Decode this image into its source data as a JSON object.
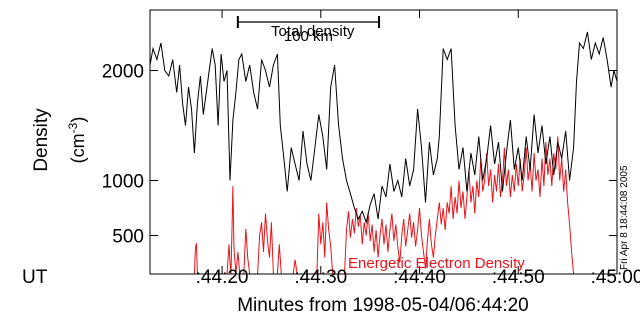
{
  "chart_data": {
    "type": "line",
    "ylabel": "Density",
    "ylabel_unit": "(cm-3)",
    "ylabel_unit_base": "(cm",
    "ylabel_unit_exp": "-3",
    "ylabel_unit_close": ")",
    "xlabel": "Minutes from 1998-05-04/06:44:20",
    "x_row_label": "UT",
    "xlim_seconds": [
      -7.3,
      40
    ],
    "ylim": [
      150,
      2550
    ],
    "x_ticks": [
      {
        "t": 0,
        "label": ":44:20"
      },
      {
        "t": 10,
        "label": ":44:30"
      },
      {
        "t": 20,
        "label": ":44:40"
      },
      {
        "t": 30,
        "label": ":44:50"
      },
      {
        "t": 40,
        "label": ":45:00"
      }
    ],
    "y_ticks": [
      500,
      1000,
      2000
    ],
    "y_tick_labels": [
      "500",
      "1000",
      "2000"
    ],
    "annotations": {
      "total_label": "Total density",
      "energetic_label": "Energetic Electron Density",
      "scale_bar_label": "100 km",
      "scale_bar_seconds": [
        1.6,
        15.9
      ],
      "timestamp": "Fri Apr  8 18:44:08 2005"
    },
    "series": [
      {
        "name": "Total density",
        "color": "#000000",
        "points": [
          [
            -7.3,
            2050
          ],
          [
            -7.0,
            2200
          ],
          [
            -6.6,
            2100
          ],
          [
            -6.2,
            2250
          ],
          [
            -5.8,
            2000
          ],
          [
            -5.4,
            1950
          ],
          [
            -5.0,
            2100
          ],
          [
            -4.6,
            1800
          ],
          [
            -4.3,
            2050
          ],
          [
            -4.0,
            1700
          ],
          [
            -3.7,
            1500
          ],
          [
            -3.4,
            1850
          ],
          [
            -3.1,
            1650
          ],
          [
            -2.8,
            1250
          ],
          [
            -2.5,
            1700
          ],
          [
            -2.2,
            1950
          ],
          [
            -1.9,
            1600
          ],
          [
            -1.6,
            1800
          ],
          [
            -1.3,
            2000
          ],
          [
            -1.0,
            2200
          ],
          [
            -0.7,
            2050
          ],
          [
            -0.4,
            1500
          ],
          [
            -0.1,
            2150
          ],
          [
            0.2,
            1900
          ],
          [
            0.5,
            2000
          ],
          [
            0.8,
            1000
          ],
          [
            1.1,
            1550
          ],
          [
            1.4,
            1800
          ],
          [
            1.7,
            2100
          ],
          [
            2.0,
            2150
          ],
          [
            2.4,
            1900
          ],
          [
            2.8,
            2050
          ],
          [
            3.2,
            1800
          ],
          [
            3.6,
            1650
          ],
          [
            4.0,
            2100
          ],
          [
            4.4,
            2000
          ],
          [
            4.8,
            1850
          ],
          [
            5.2,
            2050
          ],
          [
            5.6,
            2150
          ],
          [
            5.9,
            1500
          ],
          [
            6.2,
            1250
          ],
          [
            6.6,
            900
          ],
          [
            7.0,
            1300
          ],
          [
            7.4,
            1150
          ],
          [
            7.8,
            1000
          ],
          [
            8.2,
            1450
          ],
          [
            8.6,
            1150
          ],
          [
            9.0,
            1000
          ],
          [
            9.4,
            1300
          ],
          [
            9.8,
            1600
          ],
          [
            10.2,
            1400
          ],
          [
            10.6,
            1100
          ],
          [
            11.0,
            1850
          ],
          [
            11.4,
            2050
          ],
          [
            11.8,
            1500
          ],
          [
            12.2,
            1200
          ],
          [
            12.6,
            1000
          ],
          [
            13.0,
            880
          ],
          [
            13.4,
            750
          ],
          [
            13.8,
            650
          ],
          [
            14.2,
            720
          ],
          [
            14.6,
            620
          ],
          [
            15.0,
            780
          ],
          [
            15.4,
            880
          ],
          [
            15.8,
            650
          ],
          [
            16.2,
            950
          ],
          [
            16.6,
            850
          ],
          [
            17.0,
            1150
          ],
          [
            17.4,
            900
          ],
          [
            17.8,
            1000
          ],
          [
            18.2,
            850
          ],
          [
            18.6,
            1200
          ],
          [
            19.0,
            950
          ],
          [
            19.4,
            1100
          ],
          [
            19.8,
            1650
          ],
          [
            20.2,
            1300
          ],
          [
            20.6,
            800
          ],
          [
            21.0,
            1350
          ],
          [
            21.4,
            1050
          ],
          [
            21.8,
            1200
          ],
          [
            22.0,
            1400
          ],
          [
            22.4,
            2200
          ],
          [
            22.8,
            2100
          ],
          [
            23.2,
            2200
          ],
          [
            23.6,
            1500
          ],
          [
            24.0,
            1100
          ],
          [
            24.4,
            1300
          ],
          [
            24.8,
            900
          ],
          [
            25.2,
            1250
          ],
          [
            25.6,
            1050
          ],
          [
            26.0,
            1400
          ],
          [
            26.4,
            1000
          ],
          [
            26.8,
            1200
          ],
          [
            27.2,
            1500
          ],
          [
            27.6,
            1150
          ],
          [
            28.0,
            1350
          ],
          [
            28.4,
            900
          ],
          [
            28.8,
            1250
          ],
          [
            29.2,
            1550
          ],
          [
            29.6,
            1100
          ],
          [
            30.0,
            1300
          ],
          [
            30.4,
            1000
          ],
          [
            30.8,
            1400
          ],
          [
            31.2,
            1100
          ],
          [
            31.6,
            1600
          ],
          [
            32.0,
            1250
          ],
          [
            32.4,
            1500
          ],
          [
            32.8,
            1150
          ],
          [
            33.2,
            1400
          ],
          [
            33.6,
            1050
          ],
          [
            34.0,
            1350
          ],
          [
            34.4,
            1200
          ],
          [
            34.8,
            1450
          ],
          [
            35.2,
            1000
          ],
          [
            35.6,
            1300
          ],
          [
            35.9,
            1900
          ],
          [
            36.2,
            2250
          ],
          [
            36.6,
            2200
          ],
          [
            37.0,
            2350
          ],
          [
            37.4,
            2100
          ],
          [
            37.8,
            2250
          ],
          [
            38.2,
            2150
          ],
          [
            38.6,
            2300
          ],
          [
            39.0,
            2100
          ],
          [
            39.4,
            1850
          ],
          [
            39.7,
            2000
          ],
          [
            40.0,
            1900
          ]
        ]
      },
      {
        "name": "Energetic Electron Density",
        "color": "#e8141b",
        "points": [
          [
            -2.8,
            150
          ],
          [
            -2.7,
            380
          ],
          [
            -2.6,
            430
          ],
          [
            -2.5,
            150
          ],
          [
            0.5,
            150
          ],
          [
            0.7,
            420
          ],
          [
            0.8,
            250
          ],
          [
            0.9,
            150
          ],
          [
            1.0,
            520
          ],
          [
            1.1,
            950
          ],
          [
            1.2,
            400
          ],
          [
            1.4,
            150
          ],
          [
            1.6,
            350
          ],
          [
            1.8,
            150
          ],
          [
            2.2,
            150
          ],
          [
            2.4,
            560
          ],
          [
            2.6,
            300
          ],
          [
            2.8,
            150
          ],
          [
            3.6,
            150
          ],
          [
            3.8,
            500
          ],
          [
            4.0,
            620
          ],
          [
            4.2,
            350
          ],
          [
            4.4,
            700
          ],
          [
            4.6,
            450
          ],
          [
            4.8,
            300
          ],
          [
            5.0,
            620
          ],
          [
            5.2,
            150
          ],
          [
            5.6,
            150
          ],
          [
            5.8,
            420
          ],
          [
            6.0,
            150
          ],
          [
            7.2,
            150
          ],
          [
            7.4,
            280
          ],
          [
            7.6,
            150
          ],
          [
            9.6,
            150
          ],
          [
            9.8,
            700
          ],
          [
            10.0,
            420
          ],
          [
            10.2,
            620
          ],
          [
            10.4,
            300
          ],
          [
            10.6,
            800
          ],
          [
            10.8,
            550
          ],
          [
            11.0,
            400
          ],
          [
            11.2,
            150
          ],
          [
            12.4,
            150
          ],
          [
            12.6,
            550
          ],
          [
            12.8,
            720
          ],
          [
            13.0,
            480
          ],
          [
            13.2,
            650
          ],
          [
            13.4,
            520
          ],
          [
            13.6,
            750
          ],
          [
            13.8,
            580
          ],
          [
            14.0,
            680
          ],
          [
            14.2,
            420
          ],
          [
            14.4,
            620
          ],
          [
            14.6,
            500
          ],
          [
            14.8,
            700
          ],
          [
            15.0,
            450
          ],
          [
            15.2,
            600
          ],
          [
            15.4,
            350
          ],
          [
            15.6,
            550
          ],
          [
            15.8,
            300
          ],
          [
            16.0,
            500
          ],
          [
            16.2,
            650
          ],
          [
            16.4,
            420
          ],
          [
            16.6,
            600
          ],
          [
            16.8,
            350
          ],
          [
            17.0,
            550
          ],
          [
            17.2,
            700
          ],
          [
            17.4,
            450
          ],
          [
            17.6,
            600
          ],
          [
            17.8,
            400
          ],
          [
            18.0,
            250
          ],
          [
            18.2,
            500
          ],
          [
            18.4,
            650
          ],
          [
            18.6,
            400
          ],
          [
            18.8,
            550
          ],
          [
            19.0,
            700
          ],
          [
            19.2,
            480
          ],
          [
            19.4,
            620
          ],
          [
            19.6,
            400
          ],
          [
            19.8,
            550
          ],
          [
            20.0,
            750
          ],
          [
            20.2,
            500
          ],
          [
            20.4,
            350
          ],
          [
            20.6,
            200
          ],
          [
            20.8,
            450
          ],
          [
            21.0,
            650
          ],
          [
            21.2,
            420
          ],
          [
            21.4,
            300
          ],
          [
            21.6,
            500
          ],
          [
            21.8,
            650
          ],
          [
            22.0,
            800
          ],
          [
            22.2,
            600
          ],
          [
            22.4,
            750
          ],
          [
            22.6,
            550
          ],
          [
            22.8,
            800
          ],
          [
            23.0,
            700
          ],
          [
            23.2,
            950
          ],
          [
            23.4,
            650
          ],
          [
            23.6,
            850
          ],
          [
            23.8,
            700
          ],
          [
            24.0,
            1000
          ],
          [
            24.2,
            750
          ],
          [
            24.4,
            900
          ],
          [
            24.6,
            650
          ],
          [
            24.8,
            850
          ],
          [
            25.0,
            1100
          ],
          [
            25.2,
            800
          ],
          [
            25.4,
            950
          ],
          [
            25.6,
            700
          ],
          [
            25.8,
            1000
          ],
          [
            26.0,
            850
          ],
          [
            26.2,
            1200
          ],
          [
            26.4,
            900
          ],
          [
            26.6,
            1000
          ],
          [
            26.8,
            1250
          ],
          [
            27.0,
            950
          ],
          [
            27.2,
            1100
          ],
          [
            27.4,
            800
          ],
          [
            27.6,
            1050
          ],
          [
            27.8,
            900
          ],
          [
            28.0,
            1150
          ],
          [
            28.2,
            850
          ],
          [
            28.4,
            1000
          ],
          [
            28.6,
            1300
          ],
          [
            28.8,
            950
          ],
          [
            29.0,
            1100
          ],
          [
            29.2,
            850
          ],
          [
            29.4,
            1050
          ],
          [
            29.6,
            900
          ],
          [
            29.8,
            1150
          ],
          [
            30.0,
            950
          ],
          [
            30.2,
            1200
          ],
          [
            30.4,
            900
          ],
          [
            30.6,
            1050
          ],
          [
            30.8,
            1300
          ],
          [
            31.0,
            1000
          ],
          [
            31.2,
            1150
          ],
          [
            31.4,
            900
          ],
          [
            31.6,
            1250
          ],
          [
            31.8,
            1000
          ],
          [
            32.0,
            1100
          ],
          [
            32.2,
            850
          ],
          [
            32.4,
            1200
          ],
          [
            32.6,
            950
          ],
          [
            32.8,
            1350
          ],
          [
            33.0,
            1050
          ],
          [
            33.2,
            1200
          ],
          [
            33.4,
            950
          ],
          [
            33.6,
            1250
          ],
          [
            33.8,
            1100
          ],
          [
            34.0,
            1400
          ],
          [
            34.2,
            1000
          ],
          [
            34.4,
            1200
          ],
          [
            34.6,
            900
          ],
          [
            34.8,
            1100
          ],
          [
            35.0,
            800
          ],
          [
            35.2,
            600
          ],
          [
            35.4,
            350
          ],
          [
            35.6,
            150
          ]
        ]
      }
    ]
  }
}
